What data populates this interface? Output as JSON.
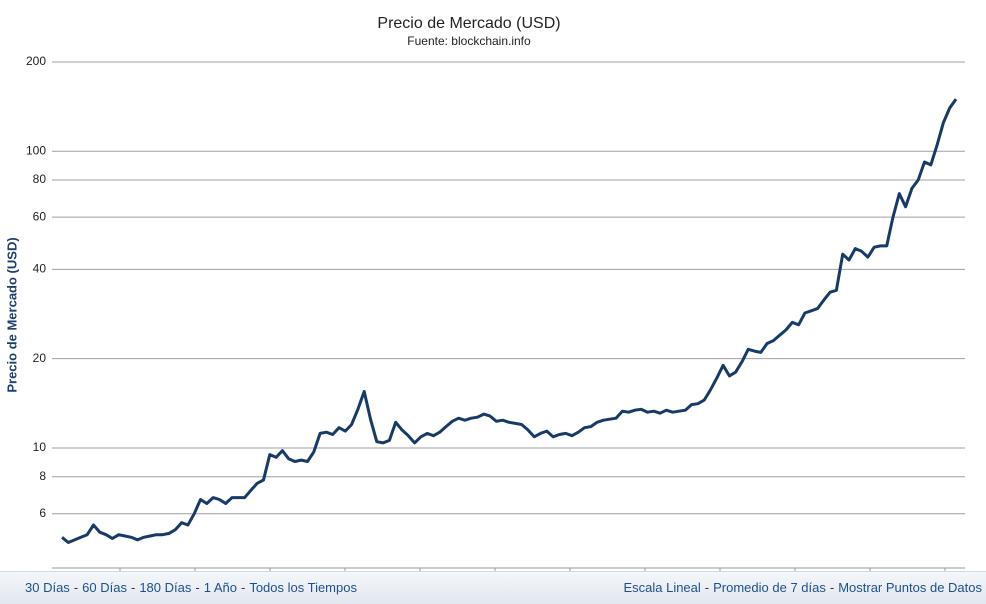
{
  "chart_data": {
    "type": "line",
    "title": "Precio de Mercado (USD)",
    "subtitle": "Fuente: blockchain.info",
    "y_label": "Precio de Mercado (USD)",
    "log_scale": true,
    "grid": true,
    "ylim": [
      4,
      200
    ],
    "yticks": [
      6,
      8,
      10,
      20,
      40,
      60,
      80,
      100,
      200
    ],
    "series": [
      {
        "name": "Precio de Mercado",
        "color": "#173a68",
        "values": [
          5.0,
          4.8,
          4.9,
          5.0,
          5.1,
          5.5,
          5.2,
          5.1,
          4.95,
          5.1,
          5.05,
          5.0,
          4.9,
          5.0,
          5.05,
          5.1,
          5.1,
          5.15,
          5.3,
          5.6,
          5.5,
          6.0,
          6.7,
          6.5,
          6.8,
          6.7,
          6.5,
          6.8,
          6.8,
          6.8,
          7.2,
          7.6,
          7.8,
          9.5,
          9.3,
          9.8,
          9.2,
          9.0,
          9.1,
          9.0,
          9.7,
          11.2,
          11.3,
          11.1,
          11.7,
          11.4,
          12.0,
          13.5,
          15.5,
          12.5,
          10.5,
          10.4,
          10.6,
          12.2,
          11.5,
          11.0,
          10.4,
          10.9,
          11.2,
          11.0,
          11.3,
          11.8,
          12.3,
          12.6,
          12.4,
          12.6,
          12.7,
          13.0,
          12.8,
          12.3,
          12.4,
          12.2,
          12.1,
          12.0,
          11.5,
          10.9,
          11.2,
          11.4,
          10.9,
          11.1,
          11.2,
          11.0,
          11.3,
          11.7,
          11.8,
          12.2,
          12.4,
          12.5,
          12.6,
          13.3,
          13.2,
          13.4,
          13.5,
          13.2,
          13.3,
          13.1,
          13.4,
          13.2,
          13.3,
          13.4,
          14.0,
          14.1,
          14.5,
          15.7,
          17.2,
          19.0,
          17.5,
          18.0,
          19.5,
          21.5,
          21.2,
          21.0,
          22.5,
          23.0,
          24.0,
          25.0,
          26.5,
          26.0,
          28.5,
          29.0,
          29.5,
          31.5,
          33.5,
          34.0,
          45.0,
          43.0,
          47.0,
          46.0,
          44.0,
          47.5,
          48.0,
          48.0,
          60.0,
          72.0,
          65.0,
          75.0,
          80.0,
          92.0,
          90.0,
          105,
          125,
          140,
          150
        ]
      }
    ]
  },
  "footer": {
    "separator": "-",
    "left_links": [
      "30 Días",
      "60 Días",
      "180 Días",
      "1 Año",
      "Todos los Tiempos"
    ],
    "right_links": [
      "Escala Lineal",
      "Promedio de 7 días",
      "Mostrar Puntos de Datos"
    ]
  }
}
